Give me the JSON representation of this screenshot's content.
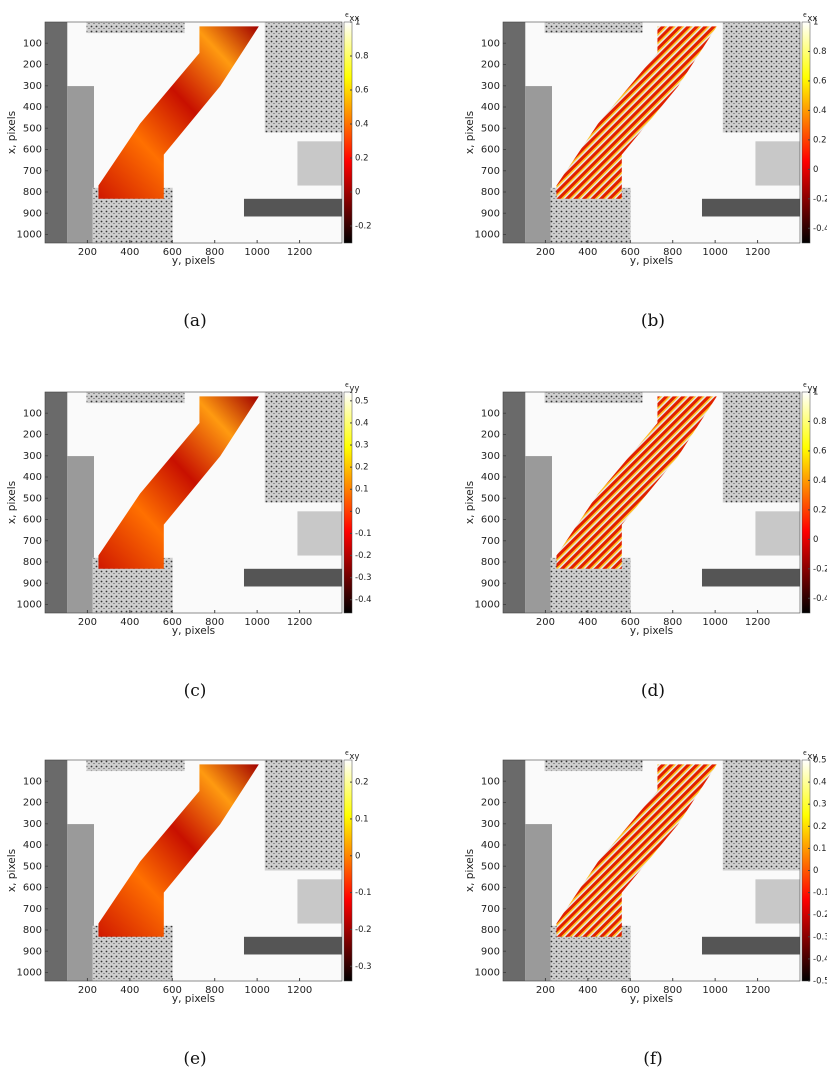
{
  "figure": {
    "panels": [
      {
        "caption": "(a)",
        "xlabel": "y, pixels",
        "ylabel": "x, pixels",
        "xlim": [
          0,
          1400
        ],
        "ylim": [
          0,
          1040
        ],
        "xticks": [
          200,
          400,
          600,
          800,
          1000,
          1200
        ],
        "yticks": [
          100,
          200,
          300,
          400,
          500,
          600,
          700,
          800,
          900,
          1000
        ],
        "colorbar": {
          "symbol": "ϵ",
          "subscript": "xx",
          "lim": [
            -0.3,
            1
          ],
          "ticks": [
            1,
            0.8,
            0.6,
            0.4,
            0.2,
            0,
            -0.2
          ]
        }
      },
      {
        "caption": "(b)",
        "xlabel": "y, pixels",
        "ylabel": "x, pixels",
        "xlim": [
          0,
          1400
        ],
        "ylim": [
          0,
          1040
        ],
        "xticks": [
          200,
          400,
          600,
          800,
          1000,
          1200
        ],
        "yticks": [
          100,
          200,
          300,
          400,
          500,
          600,
          700,
          800,
          900,
          1000
        ],
        "colorbar": {
          "symbol": "ϵ",
          "subscript": "xx",
          "lim": [
            -0.5,
            1
          ],
          "ticks": [
            1,
            0.8,
            0.6,
            0.4,
            0.2,
            0,
            -0.2,
            -0.4
          ]
        }
      },
      {
        "caption": "(c)",
        "xlabel": "y, pixels",
        "ylabel": "x, pixels",
        "xlim": [
          0,
          1400
        ],
        "ylim": [
          0,
          1040
        ],
        "xticks": [
          200,
          400,
          600,
          800,
          1000,
          1200
        ],
        "yticks": [
          100,
          200,
          300,
          400,
          500,
          600,
          700,
          800,
          900,
          1000
        ],
        "colorbar": {
          "symbol": "ϵ",
          "subscript": "yy",
          "lim": [
            -0.46,
            0.54
          ],
          "ticks": [
            0.5,
            0.4,
            0.3,
            0.2,
            0.1,
            0,
            -0.1,
            -0.2,
            -0.3,
            -0.4
          ]
        }
      },
      {
        "caption": "(d)",
        "xlabel": "y, pixels",
        "ylabel": "x, pixels",
        "xlim": [
          0,
          1400
        ],
        "ylim": [
          0,
          1040
        ],
        "xticks": [
          200,
          400,
          600,
          800,
          1000,
          1200
        ],
        "yticks": [
          100,
          200,
          300,
          400,
          500,
          600,
          700,
          800,
          900,
          1000
        ],
        "colorbar": {
          "symbol": "ϵ",
          "subscript": "yy",
          "lim": [
            -0.5,
            1
          ],
          "ticks": [
            1,
            0.8,
            0.6,
            0.4,
            0.2,
            0,
            -0.2,
            -0.4
          ]
        }
      },
      {
        "caption": "(e)",
        "xlabel": "y, pixels",
        "ylabel": "x, pixels",
        "xlim": [
          0,
          1400
        ],
        "ylim": [
          0,
          1040
        ],
        "xticks": [
          200,
          400,
          600,
          800,
          1000,
          1200
        ],
        "yticks": [
          100,
          200,
          300,
          400,
          500,
          600,
          700,
          800,
          900,
          1000
        ],
        "colorbar": {
          "symbol": "ϵ",
          "subscript": "xy",
          "lim": [
            -0.34,
            0.26
          ],
          "ticks": [
            0.2,
            0.1,
            0,
            -0.1,
            -0.2,
            -0.3
          ]
        }
      },
      {
        "caption": "(f)",
        "xlabel": "y, pixels",
        "ylabel": "x, pixels",
        "xlim": [
          0,
          1400
        ],
        "ylim": [
          0,
          1040
        ],
        "xticks": [
          200,
          400,
          600,
          800,
          1000,
          1200
        ],
        "yticks": [
          100,
          200,
          300,
          400,
          500,
          600,
          700,
          800,
          900,
          1000
        ],
        "colorbar": {
          "symbol": "ϵ",
          "subscript": "xy",
          "lim": [
            -0.5,
            0.5
          ],
          "ticks": [
            0.5,
            0.4,
            0.3,
            0.2,
            0.1,
            0,
            -0.1,
            -0.2,
            -0.3,
            -0.4,
            -0.5
          ]
        }
      }
    ]
  }
}
